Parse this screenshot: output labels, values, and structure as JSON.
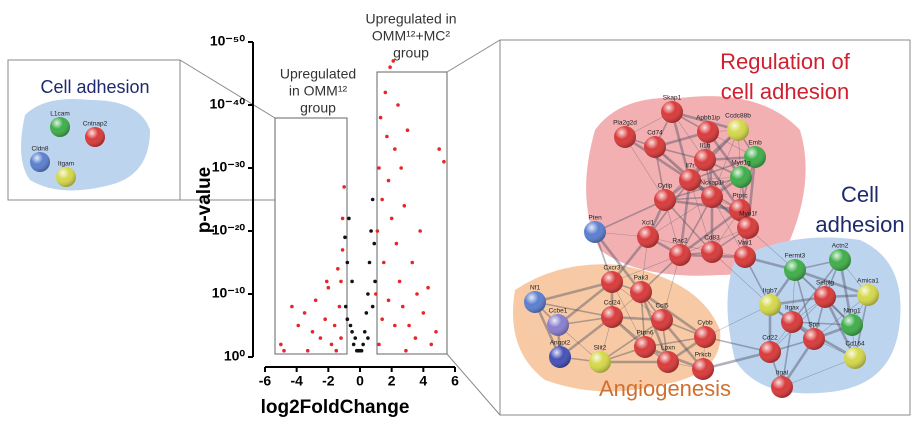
{
  "chart_data": {
    "type": "scatter",
    "xlabel": "log2FoldChange",
    "ylabel": "p-value",
    "xlim": [
      -6,
      6
    ],
    "xticks": [
      -6,
      -4,
      -2,
      0,
      2,
      4,
      6
    ],
    "ylim": [
      1,
      1e-50
    ],
    "log_y": true,
    "yticks": [
      {
        "value": 1,
        "label": "10⁰"
      },
      {
        "value": 1e-10,
        "label": "10⁻¹⁰"
      },
      {
        "value": 1e-20,
        "label": "10⁻²⁰"
      },
      {
        "value": 1e-30,
        "label": "10⁻³⁰"
      },
      {
        "value": 1e-40,
        "label": "10⁻⁴⁰"
      },
      {
        "value": 1e-50,
        "label": "10⁻⁵⁰"
      }
    ],
    "annotations": [
      [
        "Upregulated",
        "in OMM¹²",
        "group"
      ],
      [
        "Upregulated in",
        "OMM¹²+MC²",
        "group"
      ]
    ],
    "series": [
      {
        "color": "#e8262a",
        "x": [
          -4.3,
          -3.9,
          -3.5,
          -3.0,
          -2.8,
          -2.5,
          -2.2,
          -2.0,
          -1.8,
          -1.6,
          -1.4,
          -1.3,
          -1.2,
          -1.1,
          -1.1,
          -1.5,
          -3.3,
          -4.8,
          -2.1,
          -5.0,
          -1.0,
          -1.2,
          1.0,
          1.1,
          1.2,
          1.3,
          1.4,
          1.5,
          1.6,
          1.7,
          1.8,
          1.9,
          2.0,
          2.1,
          2.2,
          2.3,
          2.4,
          2.5,
          2.6,
          2.7,
          2.8,
          3.0,
          3.1,
          3.3,
          3.5,
          3.8,
          4.0,
          4.3,
          4.5,
          5.0,
          5.3,
          2.2,
          1.4,
          1.2,
          1.8,
          2.9,
          3.6,
          4.8
        ],
        "values": [
          1e-08,
          1e-05,
          1e-07,
          0.0001,
          1e-09,
          0.001,
          1e-06,
          1e-11,
          0.01,
          1e-05,
          1e-14,
          1e-08,
          0.001,
          1e-22,
          1e-17,
          0.1,
          0.1,
          0.1,
          1e-12,
          0.01,
          1e-27,
          1e-12,
          1e-10,
          1e-20,
          1e-30,
          1e-38,
          1e-25,
          1e-15,
          1e-42,
          1e-35,
          1e-28,
          1e-46,
          1e-22,
          1e-47,
          1e-33,
          1e-18,
          1e-40,
          1e-12,
          1e-30,
          1e-08,
          1e-24,
          1e-36,
          1e-05,
          1e-15,
          0.001,
          1e-20,
          1e-07,
          1e-11,
          0.01,
          1e-33,
          1e-31,
          1e-05,
          1e-06,
          0.01,
          1e-09,
          0.1,
          1e-10,
          0.0001
        ]
      },
      {
        "color": "#111111",
        "x": [
          -0.9,
          -0.8,
          -0.7,
          -0.6,
          -0.5,
          -0.4,
          -0.3,
          -0.2,
          -0.1,
          0,
          0.1,
          0.2,
          0.3,
          0.4,
          0.5,
          0.6,
          0.7,
          0.8,
          0.9,
          0.95,
          -0.95,
          0.5,
          -0.5,
          0.8,
          -0.8
        ],
        "values": [
          1e-08,
          1e-15,
          1e-22,
          1e-05,
          1e-12,
          0.01,
          0.001,
          0.1,
          0.1,
          0.1,
          0.1,
          0.01,
          0.0001,
          1e-07,
          1e-10,
          1e-15,
          1e-20,
          1e-25,
          1e-18,
          1e-12,
          1e-19,
          0.001,
          0.0001,
          1e-08,
          1e-06
        ]
      }
    ]
  },
  "inset": {
    "title": "Cell adhesion",
    "nodes": [
      {
        "label": "L1cam",
        "color": "#3fae4a"
      },
      {
        "label": "Cntnap2",
        "color": "#d93a3a"
      },
      {
        "label": "Cldn8",
        "color": "#5b7fd0"
      },
      {
        "label": "Itgam",
        "color": "#d5d84a"
      }
    ]
  },
  "network": {
    "labels": [
      [
        "Regulation of",
        "cell adhesion"
      ],
      [
        "Cell",
        "adhesion"
      ],
      [
        "Angiogenesis"
      ]
    ],
    "nodes": [
      {
        "label": "Skap1",
        "color": "#d93a3a"
      },
      {
        "label": "Apbb1ip",
        "color": "#d93a3a"
      },
      {
        "label": "Ccdc88b",
        "color": "#d5d84a"
      },
      {
        "label": "Pla2g2d",
        "color": "#d93a3a"
      },
      {
        "label": "Cd74",
        "color": "#d93a3a"
      },
      {
        "label": "Emb",
        "color": "#3fae4a"
      },
      {
        "label": "Il1b",
        "color": "#d93a3a"
      },
      {
        "label": "Myo1g",
        "color": "#3fae4a"
      },
      {
        "label": "Il7r",
        "color": "#d93a3a"
      },
      {
        "label": "Cytip",
        "color": "#d93a3a"
      },
      {
        "label": "Nckap1l",
        "color": "#d93a3a"
      },
      {
        "label": "Ptprc",
        "color": "#d93a3a"
      },
      {
        "label": "Myo1f",
        "color": "#d93a3a"
      },
      {
        "label": "Pten",
        "color": "#5b7fd0"
      },
      {
        "label": "Xcl1",
        "color": "#d93a3a"
      },
      {
        "label": "Rac2",
        "color": "#d93a3a"
      },
      {
        "label": "Cd83",
        "color": "#d93a3a"
      },
      {
        "label": "Vav1",
        "color": "#d93a3a"
      },
      {
        "label": "Fermt3",
        "color": "#3fae4a"
      },
      {
        "label": "Actn2",
        "color": "#3fae4a"
      },
      {
        "label": "Amica1",
        "color": "#d5d84a"
      },
      {
        "label": "Selplg",
        "color": "#d93a3a"
      },
      {
        "label": "Ntng1",
        "color": "#3fae4a"
      },
      {
        "label": "Itgb7",
        "color": "#d5d84a"
      },
      {
        "label": "Itgax",
        "color": "#d93a3a"
      },
      {
        "label": "Spn",
        "color": "#d93a3a"
      },
      {
        "label": "Cd164",
        "color": "#d5d84a"
      },
      {
        "label": "Cd22",
        "color": "#d93a3a"
      },
      {
        "label": "Itgal",
        "color": "#d93a3a"
      },
      {
        "label": "Nf1",
        "color": "#5b7fd0"
      },
      {
        "label": "Cxcr3",
        "color": "#d93a3a"
      },
      {
        "label": "Pak3",
        "color": "#d93a3a"
      },
      {
        "label": "Ccl24",
        "color": "#d93a3a"
      },
      {
        "label": "Ccl5",
        "color": "#d93a3a"
      },
      {
        "label": "Cybb",
        "color": "#d93a3a"
      },
      {
        "label": "Ccbe1",
        "color": "#8a7fd0"
      },
      {
        "label": "Ptpn6",
        "color": "#d93a3a"
      },
      {
        "label": "Lpxn",
        "color": "#d93a3a"
      },
      {
        "label": "Prkcb",
        "color": "#d93a3a"
      },
      {
        "label": "Angpt2",
        "color": "#4650b8"
      },
      {
        "label": "Slit2",
        "color": "#d5d84a"
      }
    ]
  }
}
